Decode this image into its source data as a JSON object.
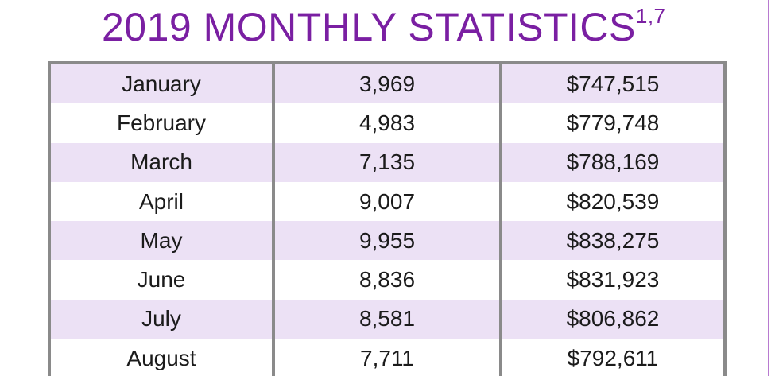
{
  "title": {
    "text": "2019 MONTHLY STATISTICS",
    "superscript": "1,7"
  },
  "rows": [
    {
      "month": "January",
      "count": "3,969",
      "amount": "$747,515"
    },
    {
      "month": "February",
      "count": "4,983",
      "amount": "$779,748"
    },
    {
      "month": "March",
      "count": "7,135",
      "amount": "$788,169"
    },
    {
      "month": "April",
      "count": "9,007",
      "amount": "$820,539"
    },
    {
      "month": "May",
      "count": "9,955",
      "amount": "$838,275"
    },
    {
      "month": "June",
      "count": "8,836",
      "amount": "$831,923"
    },
    {
      "month": "July",
      "count": "8,581",
      "amount": "$806,862"
    },
    {
      "month": "August",
      "count": "7,711",
      "amount": "$792,611"
    }
  ],
  "colors": {
    "title": "#7a1fa2",
    "row_shade": "#ece1f5",
    "border": "#8a8a8a"
  }
}
